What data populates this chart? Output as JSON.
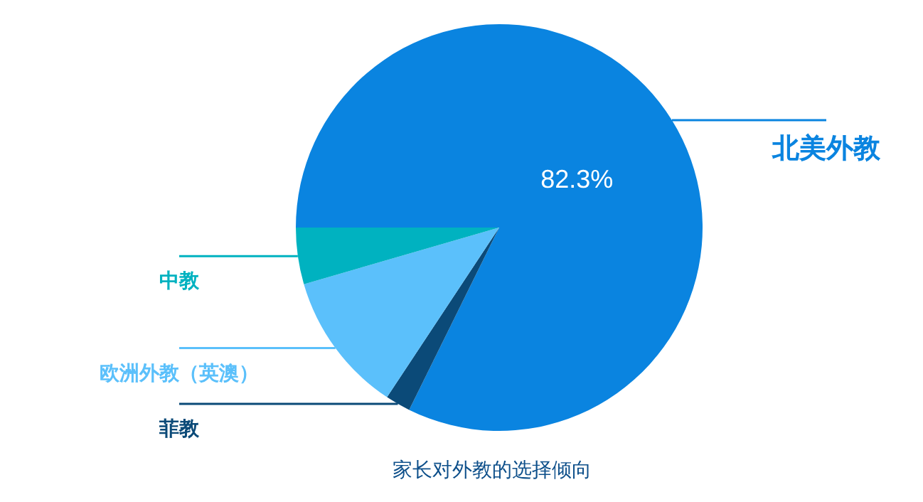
{
  "chart_data": {
    "type": "pie",
    "title": "家长对外教的选择倾向",
    "categories": [
      "北美外教",
      "菲教",
      "欧洲外教（英澳）",
      "中教"
    ],
    "values": [
      82.3,
      2.0,
      11.2,
      4.5
    ],
    "colors": [
      "#0a84e0",
      "#0b4a78",
      "#5bc0fb",
      "#00b2c0"
    ],
    "value_labels": [
      "82.3%",
      null,
      null,
      null
    ]
  }
}
